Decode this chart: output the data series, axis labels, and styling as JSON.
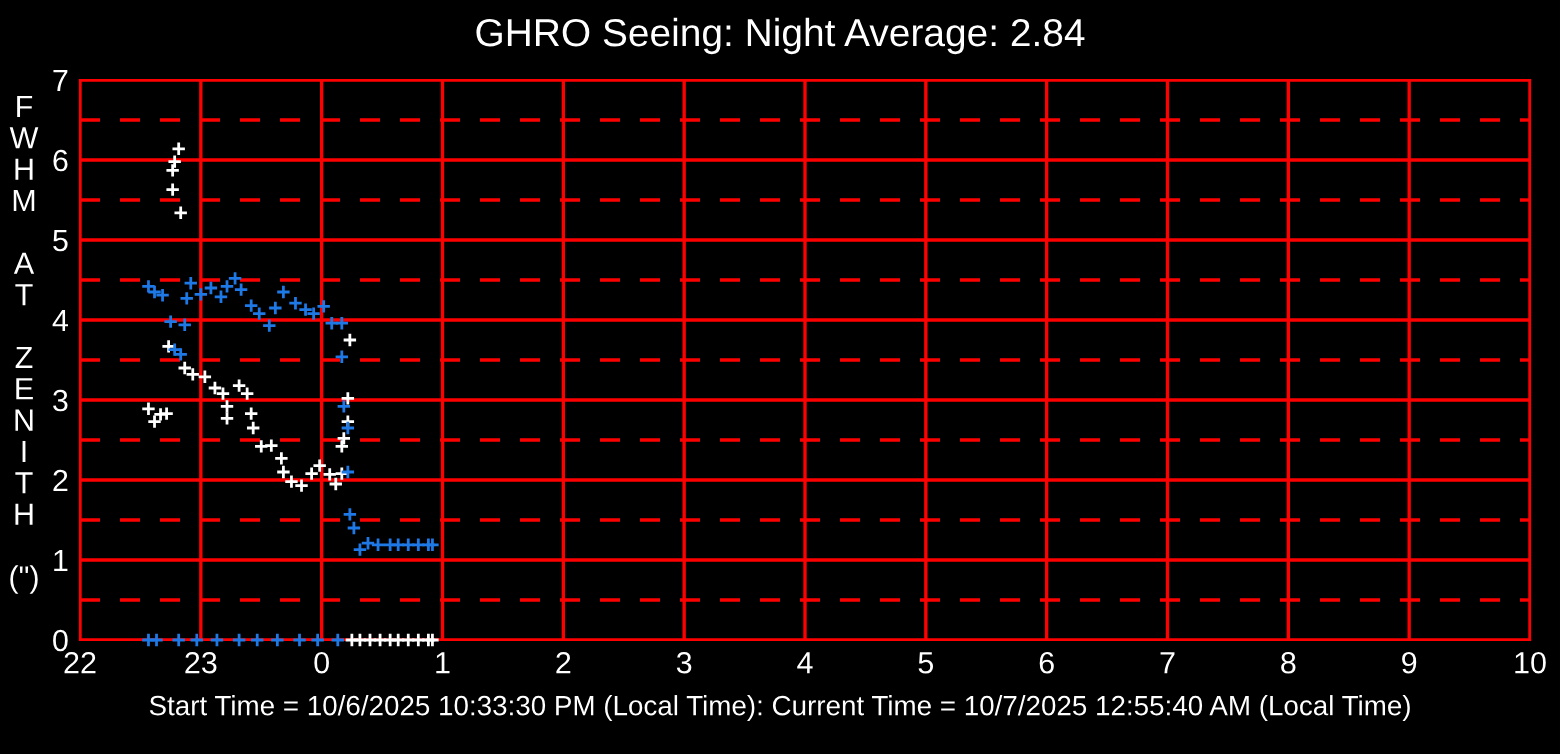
{
  "chart_data": {
    "type": "scatter",
    "title": "GHRO Seeing: Night Average: 2.84",
    "ylabel": "FWHM AT ZENITH (\")",
    "annotations": [
      "Start Time = 10/6/2025 10:33:30 PM (Local Time): Current Time = 10/7/2025 12:55:40 AM (Local Time)"
    ],
    "xlim": [
      "2025-10-06T22:00",
      "2025-10-07T10:00"
    ],
    "xticks": [
      {
        "value": "2025-10-06T22:00",
        "label": "22"
      },
      {
        "value": "2025-10-06T23:00",
        "label": "23"
      },
      {
        "value": "2025-10-07T00:00",
        "label": "0"
      },
      {
        "value": "2025-10-07T01:00",
        "label": "1"
      },
      {
        "value": "2025-10-07T02:00",
        "label": "2"
      },
      {
        "value": "2025-10-07T03:00",
        "label": "3"
      },
      {
        "value": "2025-10-07T04:00",
        "label": "4"
      },
      {
        "value": "2025-10-07T05:00",
        "label": "5"
      },
      {
        "value": "2025-10-07T06:00",
        "label": "6"
      },
      {
        "value": "2025-10-07T07:00",
        "label": "7"
      },
      {
        "value": "2025-10-07T08:00",
        "label": "8"
      },
      {
        "value": "2025-10-07T09:00",
        "label": "9"
      },
      {
        "value": "2025-10-07T10:00",
        "label": "10"
      }
    ],
    "ylim": [
      0,
      7
    ],
    "yticks": [
      0,
      1,
      2,
      3,
      4,
      5,
      6,
      7
    ],
    "grid": true,
    "marker": "cross",
    "ref_lines": [
      {
        "axis": "y",
        "value": 0.5,
        "color": "#ff0000",
        "line_style": "dashed"
      },
      {
        "axis": "y",
        "value": 1.5,
        "color": "#ff0000",
        "line_style": "dashed"
      },
      {
        "axis": "y",
        "value": 2.5,
        "color": "#ff0000",
        "line_style": "dashed"
      },
      {
        "axis": "y",
        "value": 3.5,
        "color": "#ff0000",
        "line_style": "dashed"
      },
      {
        "axis": "y",
        "value": 4.5,
        "color": "#ff0000",
        "line_style": "dashed"
      },
      {
        "axis": "y",
        "value": 5.5,
        "color": "#ff0000",
        "line_style": "dashed"
      },
      {
        "axis": "y",
        "value": 6.5,
        "color": "#ff0000",
        "line_style": "dashed"
      }
    ],
    "series": [
      {
        "color": "#ffffff",
        "x": [
          "2025-10-06T22:49",
          "2025-10-06T22:47",
          "2025-10-06T22:46",
          "2025-10-06T22:46",
          "2025-10-06T22:50",
          "2025-10-06T22:34",
          "2025-10-06T22:37",
          "2025-10-06T22:40",
          "2025-10-06T22:43",
          "2025-10-06T22:44",
          "2025-10-06T22:52",
          "2025-10-06T22:56",
          "2025-10-06T23:02",
          "2025-10-06T23:07",
          "2025-10-06T23:11",
          "2025-10-06T23:13",
          "2025-10-06T23:13",
          "2025-10-06T23:19",
          "2025-10-06T23:23",
          "2025-10-06T23:25",
          "2025-10-06T23:26",
          "2025-10-06T23:30",
          "2025-10-06T23:35",
          "2025-10-06T23:40",
          "2025-10-06T23:41",
          "2025-10-06T23:45",
          "2025-10-06T23:50",
          "2025-10-06T23:55",
          "2025-10-06T23:59",
          "2025-10-07T00:04",
          "2025-10-07T00:07",
          "2025-10-07T00:10",
          "2025-10-07T00:10",
          "2025-10-07T00:11",
          "2025-10-07T00:13",
          "2025-10-07T00:13",
          "2025-10-07T00:14",
          "2025-10-07T00:15",
          "2025-10-07T00:19",
          "2025-10-07T00:24",
          "2025-10-07T00:29",
          "2025-10-07T00:34",
          "2025-10-07T00:38",
          "2025-10-07T00:43",
          "2025-10-07T00:48",
          "2025-10-07T00:53",
          "2025-10-07T00:55"
        ],
        "values": [
          6.14,
          5.98,
          5.87,
          5.63,
          5.34,
          2.89,
          2.73,
          2.82,
          2.83,
          3.67,
          3.4,
          3.32,
          3.29,
          3.15,
          3.08,
          2.92,
          2.77,
          3.18,
          3.08,
          2.83,
          2.65,
          2.42,
          2.43,
          2.27,
          2.1,
          1.98,
          1.93,
          2.08,
          2.18,
          2.07,
          1.95,
          2.08,
          2.42,
          2.52,
          2.73,
          3.02,
          3.75,
          0,
          0,
          0,
          0,
          0,
          0,
          0,
          0,
          0,
          0
        ]
      },
      {
        "color": "#1e78e6",
        "x": [
          "2025-10-06T22:34",
          "2025-10-06T22:37",
          "2025-10-06T22:41",
          "2025-10-06T22:45",
          "2025-10-06T22:52",
          "2025-10-06T22:47",
          "2025-10-06T22:50",
          "2025-10-06T22:53",
          "2025-10-06T22:55",
          "2025-10-06T23:00",
          "2025-10-06T23:05",
          "2025-10-06T23:10",
          "2025-10-06T23:13",
          "2025-10-06T23:17",
          "2025-10-06T23:20",
          "2025-10-06T23:25",
          "2025-10-06T23:29",
          "2025-10-06T23:34",
          "2025-10-06T23:37",
          "2025-10-06T23:41",
          "2025-10-06T23:47",
          "2025-10-06T23:52",
          "2025-10-06T23:56",
          "2025-10-07T00:01",
          "2025-10-07T00:05",
          "2025-10-07T00:10",
          "2025-10-07T00:10",
          "2025-10-07T00:11",
          "2025-10-07T00:13",
          "2025-10-07T00:13",
          "2025-10-07T00:14",
          "2025-10-07T00:16",
          "2025-10-07T00:19",
          "2025-10-07T00:23",
          "2025-10-07T00:28",
          "2025-10-07T00:34",
          "2025-10-07T00:38",
          "2025-10-07T00:43",
          "2025-10-07T00:48",
          "2025-10-07T00:53",
          "2025-10-07T00:55",
          "2025-10-06T22:34",
          "2025-10-06T22:38",
          "2025-10-06T22:49",
          "2025-10-06T22:58",
          "2025-10-06T23:08",
          "2025-10-06T23:19",
          "2025-10-06T23:28",
          "2025-10-06T23:38",
          "2025-10-06T23:49",
          "2025-10-06T23:58",
          "2025-10-07T00:08"
        ],
        "values": [
          4.42,
          4.35,
          4.31,
          3.98,
          3.94,
          3.63,
          3.57,
          4.27,
          4.46,
          4.32,
          4.4,
          4.29,
          4.42,
          4.52,
          4.38,
          4.18,
          4.08,
          3.93,
          4.15,
          4.35,
          4.21,
          4.13,
          4.08,
          4.17,
          3.96,
          3.96,
          3.54,
          2.92,
          2.65,
          2.1,
          1.57,
          1.4,
          1.13,
          1.21,
          1.19,
          1.19,
          1.19,
          1.19,
          1.19,
          1.19,
          1.19,
          0,
          0,
          0,
          0,
          0,
          0,
          0,
          0,
          0,
          0,
          0
        ]
      }
    ]
  }
}
